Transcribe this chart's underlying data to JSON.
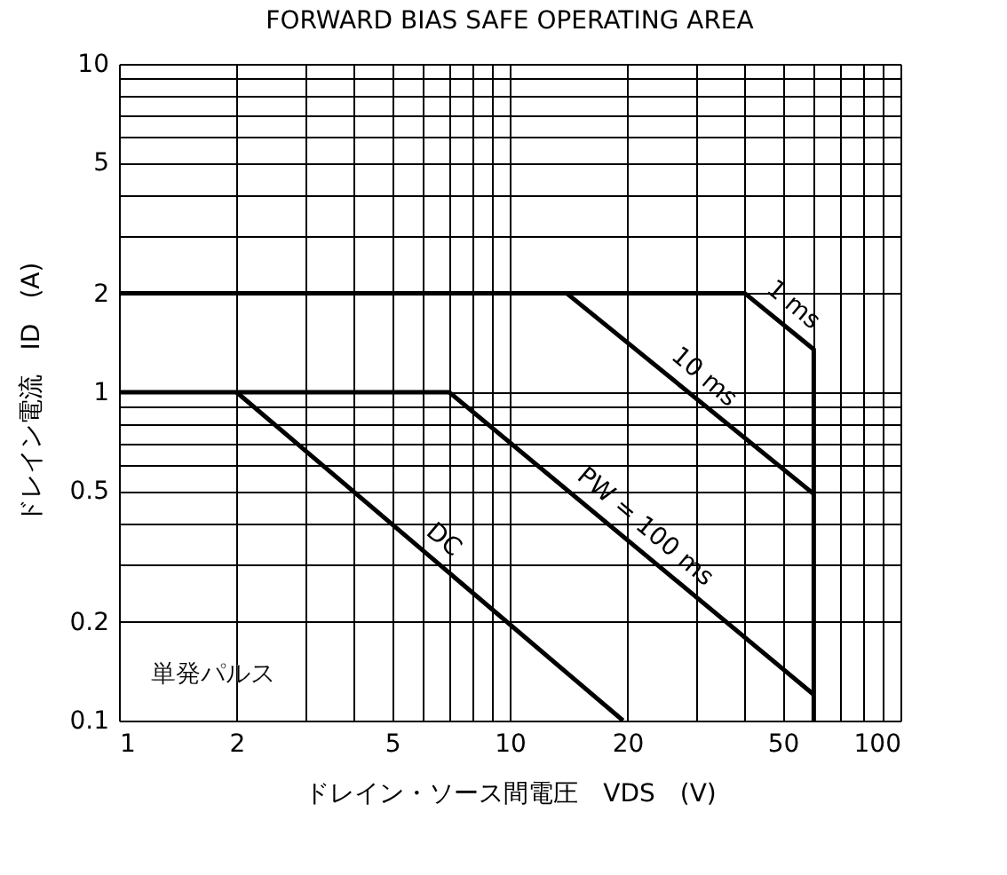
{
  "chart_data": {
    "type": "line",
    "title": "FORWARD BIAS SAFE OPERATING AREA",
    "xlabel": "ドレイン・ソース間電圧　VDS　(V)",
    "ylabel": "ドレイン電流　ID　(A)",
    "log": "xy",
    "grid": true,
    "legend": false,
    "marker": "none",
    "line_style": "solid",
    "xlim": [
      1,
      100
    ],
    "ylim": [
      0.1,
      10
    ],
    "xticks": [
      1,
      2,
      {
        "value": 3,
        "label": null
      },
      {
        "value": 4,
        "label": null
      },
      5,
      {
        "value": 6,
        "label": null
      },
      {
        "value": 7,
        "label": null
      },
      {
        "value": 8,
        "label": null
      },
      {
        "value": 9,
        "label": null
      },
      10,
      20,
      {
        "value": 30,
        "label": null
      },
      {
        "value": 40,
        "label": null
      },
      50,
      {
        "value": 60,
        "label": null
      },
      {
        "value": 70,
        "label": null
      },
      {
        "value": 80,
        "label": null
      },
      {
        "value": 90,
        "label": null
      },
      100
    ],
    "yticks": [
      0.1,
      0.2,
      {
        "value": 0.3,
        "label": null
      },
      {
        "value": 0.4,
        "label": null
      },
      0.5,
      {
        "value": 0.6,
        "label": null
      },
      {
        "value": 0.7,
        "label": null
      },
      {
        "value": 0.8,
        "label": null
      },
      {
        "value": 0.9,
        "label": null
      },
      1,
      2,
      {
        "value": 3,
        "label": null
      },
      {
        "value": 4,
        "label": null
      },
      5,
      {
        "value": 6,
        "label": null
      },
      {
        "value": 7,
        "label": null
      },
      {
        "value": 8,
        "label": null
      },
      {
        "value": 9,
        "label": null
      },
      10
    ],
    "series": [
      {
        "name": "1 ms",
        "color": "#000000",
        "x": [
          1,
          40,
          60,
          60
        ],
        "values": [
          2,
          2,
          1.35,
          0.1
        ]
      },
      {
        "name": "10 ms",
        "color": "#000000",
        "x": [
          14,
          60
        ],
        "values": [
          2,
          0.49
        ]
      },
      {
        "name": "PW = 100 ms",
        "color": "#000000",
        "x": [
          1,
          7,
          60
        ],
        "values": [
          1,
          1,
          0.12
        ]
      },
      {
        "name": "DC",
        "color": "#000000",
        "x": [
          2,
          19.5
        ],
        "values": [
          1,
          0.1
        ]
      }
    ],
    "annotations": [
      "単発パルス"
    ]
  }
}
